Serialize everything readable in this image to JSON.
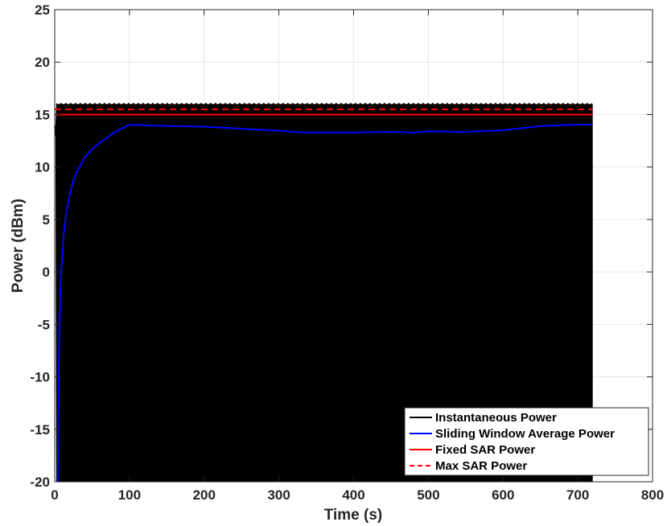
{
  "chart_data": {
    "type": "line",
    "title": "",
    "xlabel": "Time (s)",
    "ylabel": "Power (dBm)",
    "xlim": [
      0,
      800
    ],
    "ylim": [
      -20,
      25
    ],
    "xticks": [
      0,
      100,
      200,
      300,
      400,
      500,
      600,
      700,
      800
    ],
    "yticks": [
      -20,
      -15,
      -10,
      -5,
      0,
      5,
      10,
      15,
      20,
      25
    ],
    "grid": true,
    "legend_position": "bottom-right",
    "series": [
      {
        "name": "Instantaneous Power",
        "color": "#000000",
        "style": "solid",
        "kind": "band",
        "x": [
          0,
          1,
          2,
          720
        ],
        "low": [
          -20,
          13,
          -20,
          -20
        ],
        "high": [
          -20,
          14,
          16,
          16
        ]
      },
      {
        "name": "Sliding Window Average Power",
        "color": "#0000ff",
        "style": "solid",
        "x": [
          4,
          6,
          8,
          10,
          12,
          15,
          20,
          25,
          30,
          40,
          50,
          60,
          70,
          80,
          90,
          100,
          105,
          130,
          200,
          250,
          300,
          330,
          400,
          450,
          480,
          500,
          550,
          600,
          650,
          700,
          720
        ],
        "y": [
          -20,
          -6,
          -1,
          1.5,
          3.5,
          5.5,
          7.4,
          8.7,
          9.6,
          10.9,
          11.7,
          12.3,
          12.8,
          13.3,
          13.7,
          14.0,
          14.05,
          13.95,
          13.85,
          13.65,
          13.45,
          13.3,
          13.3,
          13.35,
          13.3,
          13.4,
          13.35,
          13.5,
          13.9,
          14.05,
          14.05
        ]
      },
      {
        "name": "Fixed SAR Power",
        "color": "#ff0000",
        "style": "solid",
        "x": [
          0,
          720
        ],
        "y": [
          15,
          15
        ]
      },
      {
        "name": "Max SAR Power",
        "color": "#ff0000",
        "style": "dashed",
        "x": [
          0,
          720
        ],
        "y": [
          15.5,
          15.5
        ]
      }
    ]
  }
}
